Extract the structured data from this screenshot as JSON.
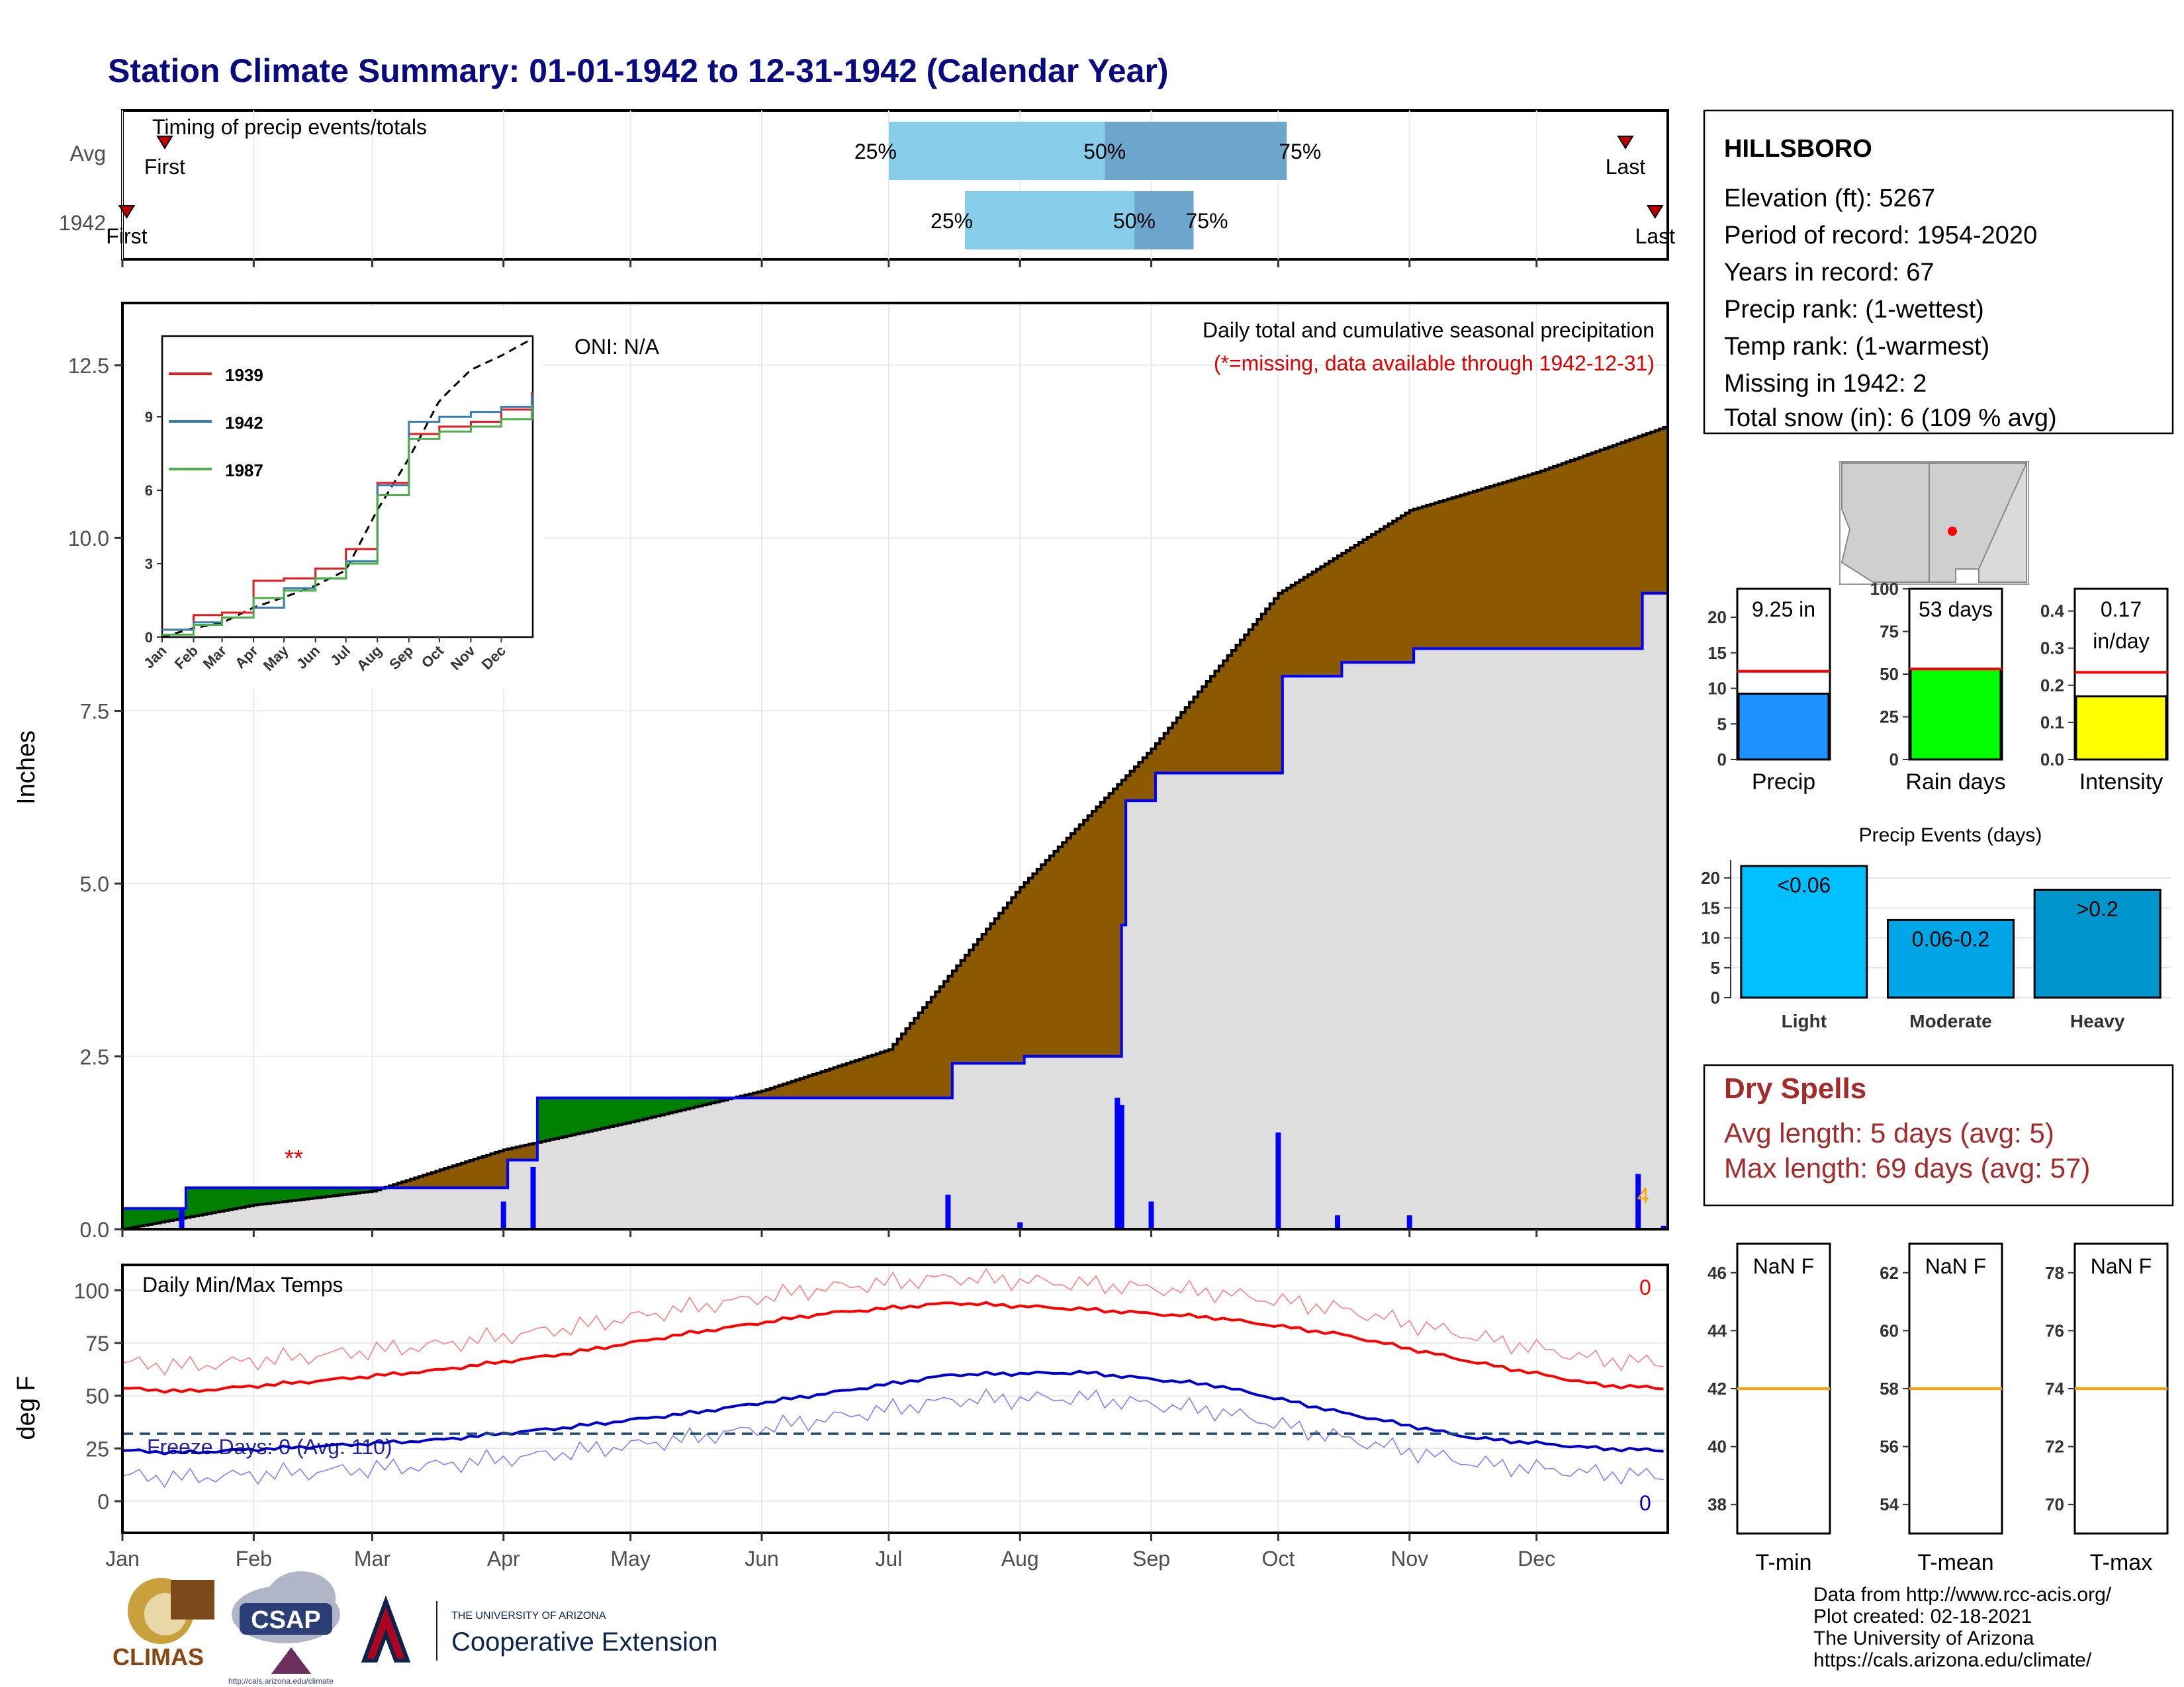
{
  "title": "Station Climate Summary: 01-01-1942 to 12-31-1942 (Calendar Year)",
  "months": [
    "Jan",
    "Feb",
    "Mar",
    "Apr",
    "May",
    "Jun",
    "Jul",
    "Aug",
    "Sep",
    "Oct",
    "Nov",
    "Dec"
  ],
  "timing": {
    "label": "Timing of precip events/totals",
    "rows": [
      {
        "name": "Avg",
        "first_label": "First",
        "last_label": "Last",
        "first_doy": 10,
        "last_doy": 355,
        "p25": 181,
        "p50": 232,
        "p75": 275,
        "p25_label": "25%",
        "p50_label": "50%",
        "p75_label": "75%"
      },
      {
        "name": "1942",
        "first_label": "First",
        "last_label": "Last",
        "first_doy": 1,
        "last_doy": 362,
        "p25": 199,
        "p50": 239,
        "p75": 253,
        "p25_label": "25%",
        "p50_label": "50%",
        "p75_label": "75%"
      }
    ]
  },
  "main": {
    "ylabel": "Inches",
    "oni": "ONI: N/A",
    "caption1": "Daily total and cumulative seasonal precipitation",
    "caption2": "(*=missing, data available through 1942-12-31)",
    "missing_marker": "**",
    "count_label": "4",
    "yticks": [
      "0.0",
      "2.5",
      "5.0",
      "7.5",
      "10.0",
      "12.5"
    ],
    "ylim": [
      0,
      12.5
    ],
    "colors": {
      "below_avg": "#8B5A00",
      "above_avg": "#008000",
      "obs_line": "#0000FF",
      "bg_fill": "#DEDEDE"
    }
  },
  "inset": {
    "legend": [
      "1939",
      "1942",
      "1987"
    ],
    "legend_colors": [
      "#E41A1C",
      "#377EB8",
      "#4DAF4A"
    ],
    "yticks": [
      "0",
      "3",
      "6",
      "9"
    ],
    "xticks": [
      "Jan",
      "Feb",
      "Mar",
      "Apr",
      "May",
      "Jun",
      "Jul",
      "Aug",
      "Sep",
      "Oct",
      "Nov",
      "Dec"
    ]
  },
  "temps": {
    "label": "Daily Min/Max Temps",
    "ylabel": "deg F",
    "freeze": "Freeze Days: 0 (Avg: 110)",
    "count_top": "0",
    "count_bottom": "0",
    "yticks": [
      "0",
      "25",
      "50",
      "75",
      "100"
    ],
    "freeze_line": 32
  },
  "station": {
    "name": "HILLSBORO",
    "lines": [
      "Elevation (ft): 5267",
      "Period of record: 1954-2020",
      "Years in record: 67",
      "Precip rank:  (1-wettest)",
      "Temp rank:  (1-warmest)",
      "Missing in 1942: 2",
      "Total snow (in): 6 (109 % avg)"
    ]
  },
  "gauges": [
    {
      "label": "Precip",
      "value_label": "9.25 in",
      "value": 9.25,
      "avg": 12.4,
      "ymax": 24,
      "yticks": [
        "0",
        "5",
        "10",
        "15",
        "20"
      ],
      "color": "#1E90FF"
    },
    {
      "label": "Rain days",
      "value_label": "53 days",
      "value": 53,
      "avg": 53,
      "ymax": 100,
      "yticks": [
        "0",
        "25",
        "50",
        "75",
        "100"
      ],
      "color": "#00FF00"
    },
    {
      "label": "Intensity",
      "value_label_1": "0.17",
      "value_label_2": "in/day",
      "value": 0.17,
      "avg": 0.235,
      "ymax": 0.46,
      "yticks": [
        "0.0",
        "0.1",
        "0.2",
        "0.3",
        "0.4"
      ],
      "color": "#FFFF00"
    }
  ],
  "events": {
    "title": "Precip Events (days)",
    "yticks": [
      "0",
      "5",
      "10",
      "15",
      "20"
    ],
    "categories": [
      "Light",
      "Moderate",
      "Heavy"
    ],
    "labels": [
      "<0.06",
      "0.06-0.2",
      ">0.2"
    ],
    "values": [
      22,
      13,
      18
    ],
    "colors": [
      "#00BFFF",
      "#00A5E6",
      "#0096CC"
    ]
  },
  "dry": {
    "title": "Dry Spells",
    "line1": "Avg length: 5 days (avg: 5)",
    "line2": "Max length: 69 days (avg: 57)"
  },
  "tgauges": [
    {
      "label": "T-min",
      "value": "NaN F",
      "yticks": [
        "38",
        "40",
        "42",
        "44",
        "46"
      ],
      "avg_label": "42"
    },
    {
      "label": "T-mean",
      "value": "NaN F",
      "yticks": [
        "54",
        "56",
        "58",
        "60",
        "62"
      ],
      "avg_label": "58"
    },
    {
      "label": "T-max",
      "value": "NaN F",
      "yticks": [
        "70",
        "72",
        "74",
        "76",
        "78"
      ],
      "avg_label": "74"
    }
  ],
  "footer": [
    "Data from http://www.rcc-acis.org/",
    "Plot created: 02-18-2021",
    "The University of Arizona",
    "https://cals.arizona.edu/climate/"
  ],
  "logos": {
    "climas": "CLIMAS",
    "csap": "CSAP",
    "csap_url": "http://cals.arizona.edu/climate",
    "ua_small": "THE UNIVERSITY OF ARIZONA",
    "ua_big": "Cooperative Extension"
  },
  "chart_data": [
    {
      "type": "area",
      "title": "Daily total and cumulative seasonal precipitation",
      "ylabel": "Inches",
      "ylim": [
        0,
        12.5
      ],
      "series": [
        {
          "name": "Avg",
          "x": [
            "01-01",
            "02-01",
            "03-01",
            "04-01",
            "05-01",
            "06-01",
            "07-01",
            "08-01",
            "09-01",
            "10-01",
            "11-01",
            "12-01",
            "12-31"
          ],
          "values": [
            0.0,
            0.35,
            0.55,
            1.15,
            1.55,
            2.0,
            2.6,
            4.95,
            6.95,
            9.2,
            10.4,
            10.95,
            11.6
          ]
        },
        {
          "name": "1942",
          "x": [
            "01-01",
            "01-15",
            "02-01",
            "03-01",
            "04-01",
            "04-08",
            "06-30",
            "07-15",
            "08-01",
            "08-24",
            "08-25",
            "09-01",
            "10-01",
            "10-15",
            "11-01",
            "12-01",
            "12-25",
            "12-31"
          ],
          "values": [
            0.3,
            0.6,
            0.6,
            0.6,
            1.0,
            1.9,
            1.9,
            2.4,
            2.5,
            4.4,
            6.2,
            6.6,
            8.0,
            8.2,
            8.4,
            8.4,
            9.2,
            9.25
          ]
        }
      ]
    },
    {
      "type": "line",
      "title": "Daily Min/Max Temps",
      "ylabel": "deg F",
      "x": [
        "Jan",
        "Feb",
        "Mar",
        "Apr",
        "May",
        "Jun",
        "Jul",
        "Aug",
        "Sep",
        "Oct",
        "Nov",
        "Dec"
      ],
      "series": [
        {
          "name": "Avg max",
          "values": [
            52,
            57,
            62,
            70,
            80,
            89,
            94,
            91,
            87,
            79,
            66,
            55
          ]
        },
        {
          "name": "Avg min",
          "values": [
            23,
            26,
            29,
            35,
            42,
            51,
            60,
            61,
            55,
            42,
            30,
            25
          ]
        }
      ]
    },
    {
      "type": "bar",
      "title": "Precip Events (days)",
      "categories": [
        "Light",
        "Moderate",
        "Heavy"
      ],
      "values": [
        22,
        13,
        18
      ]
    }
  ]
}
